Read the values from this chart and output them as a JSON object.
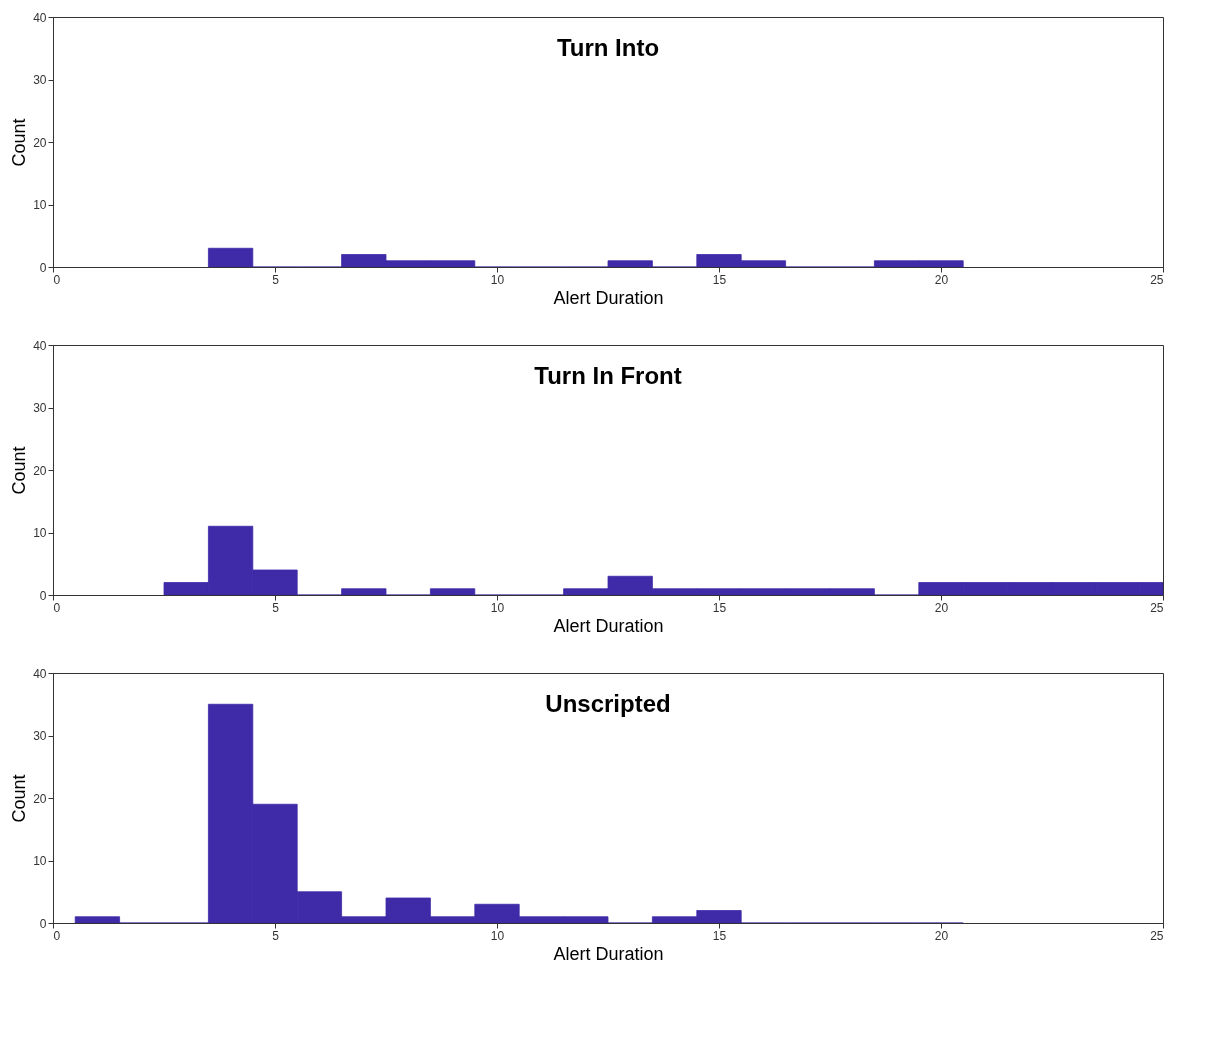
{
  "chart_data": [
    {
      "type": "histogram",
      "title": "Turn Into",
      "xlabel": "Alert Duration",
      "ylabel": "Count",
      "color": "#3f2aa8",
      "bins": [
        3.5,
        4.5,
        5.5,
        6.5,
        7.5,
        8.5,
        9.5,
        10.5,
        11.5,
        12.5,
        13.5,
        14.5,
        15.5,
        16.5,
        17.5,
        18.5,
        19.5,
        20.5
      ],
      "values": [
        3,
        0,
        0,
        2,
        1,
        1,
        0,
        0,
        0,
        1,
        0,
        2,
        1,
        0,
        0,
        1,
        1
      ],
      "xlim": [
        0,
        25
      ],
      "ylim": [
        0,
        40
      ],
      "xticks": [
        0,
        5,
        10,
        15,
        20,
        25
      ],
      "yticks": [
        0,
        10,
        20,
        30,
        40
      ],
      "grid": false
    },
    {
      "type": "histogram",
      "title": "Turn In Front",
      "xlabel": "Alert Duration",
      "ylabel": "Count",
      "color": "#3f2aa8",
      "bins": [
        2.5,
        3.5,
        4.5,
        5.5,
        6.5,
        7.5,
        8.5,
        9.5,
        10.5,
        11.5,
        12.5,
        13.5,
        14.5,
        15.5,
        16.5,
        17.5,
        18.5,
        19.5,
        20.5,
        21.5,
        22.5,
        23.5,
        24.5,
        25
      ],
      "values": [
        2,
        11,
        4,
        0,
        1,
        0,
        1,
        0,
        0,
        1,
        3,
        1,
        1,
        1,
        1,
        1,
        0,
        2,
        2,
        2,
        2,
        2,
        2
      ],
      "xlim": [
        0,
        25
      ],
      "ylim": [
        0,
        40
      ],
      "xticks": [
        0,
        5,
        10,
        15,
        20,
        25
      ],
      "yticks": [
        0,
        10,
        20,
        30,
        40
      ],
      "grid": false
    },
    {
      "type": "histogram",
      "title": "Unscripted",
      "xlabel": "Alert Duration",
      "ylabel": "Count",
      "color": "#3f2aa8",
      "bins": [
        0.5,
        1.5,
        2.5,
        3.5,
        4.5,
        5.5,
        6.5,
        7.5,
        8.5,
        9.5,
        10.5,
        11.5,
        12.5,
        13.5,
        14.5,
        15.5,
        16.5,
        17.5,
        18.5,
        19.5,
        20.5
      ],
      "values": [
        1,
        0,
        0,
        35,
        19,
        5,
        1,
        4,
        1,
        3,
        1,
        1,
        0,
        1,
        2,
        0,
        0,
        0,
        0,
        0
      ],
      "xlim": [
        0,
        25
      ],
      "ylim": [
        0,
        40
      ],
      "xticks": [
        0,
        5,
        10,
        15,
        20,
        25
      ],
      "yticks": [
        0,
        10,
        20,
        30,
        40
      ],
      "grid": false
    }
  ]
}
